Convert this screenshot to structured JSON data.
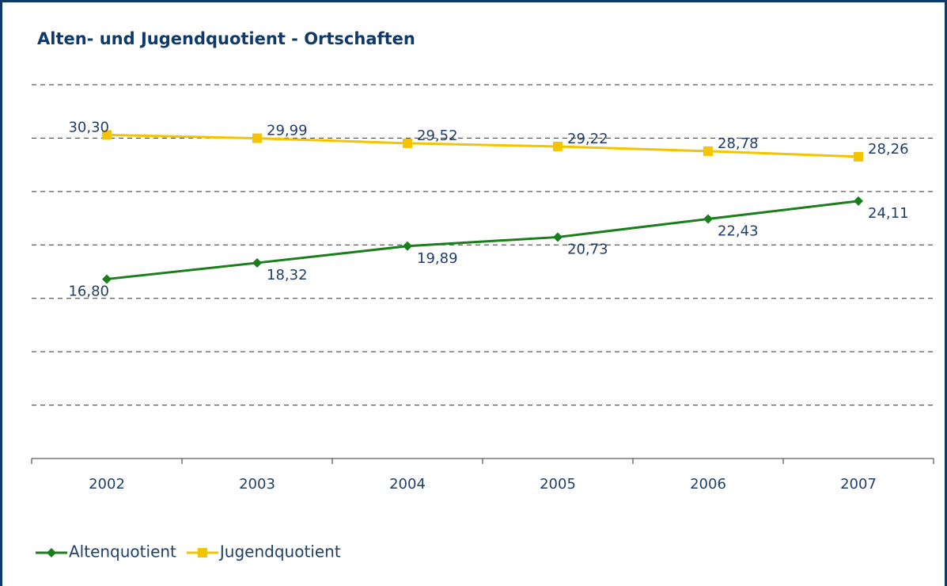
{
  "chart_data": {
    "type": "line",
    "title": "Alten- und Jugendquotient - Ortschaften",
    "categories": [
      "2002",
      "2003",
      "2004",
      "2005",
      "2006",
      "2007"
    ],
    "series": [
      {
        "name": "Altenquotient",
        "color": "#1a7f1a",
        "marker": "diamond",
        "values": [
          16.8,
          18.32,
          19.89,
          20.73,
          22.43,
          24.11
        ],
        "value_labels": [
          "16,80",
          "18,32",
          "19,89",
          "20,73",
          "22,43",
          "24,11"
        ]
      },
      {
        "name": "Jugendquotient",
        "color": "#f5c400",
        "marker": "square",
        "values": [
          30.3,
          29.99,
          29.52,
          29.22,
          28.78,
          28.26
        ],
        "value_labels": [
          "30,30",
          "29,99",
          "29,52",
          "29,22",
          "28,78",
          "28,26"
        ]
      }
    ],
    "ylim": [
      0,
      35
    ],
    "yticks": [
      5,
      10,
      15,
      20,
      25,
      30,
      35
    ],
    "grid": true,
    "legend": "bottom-left"
  }
}
